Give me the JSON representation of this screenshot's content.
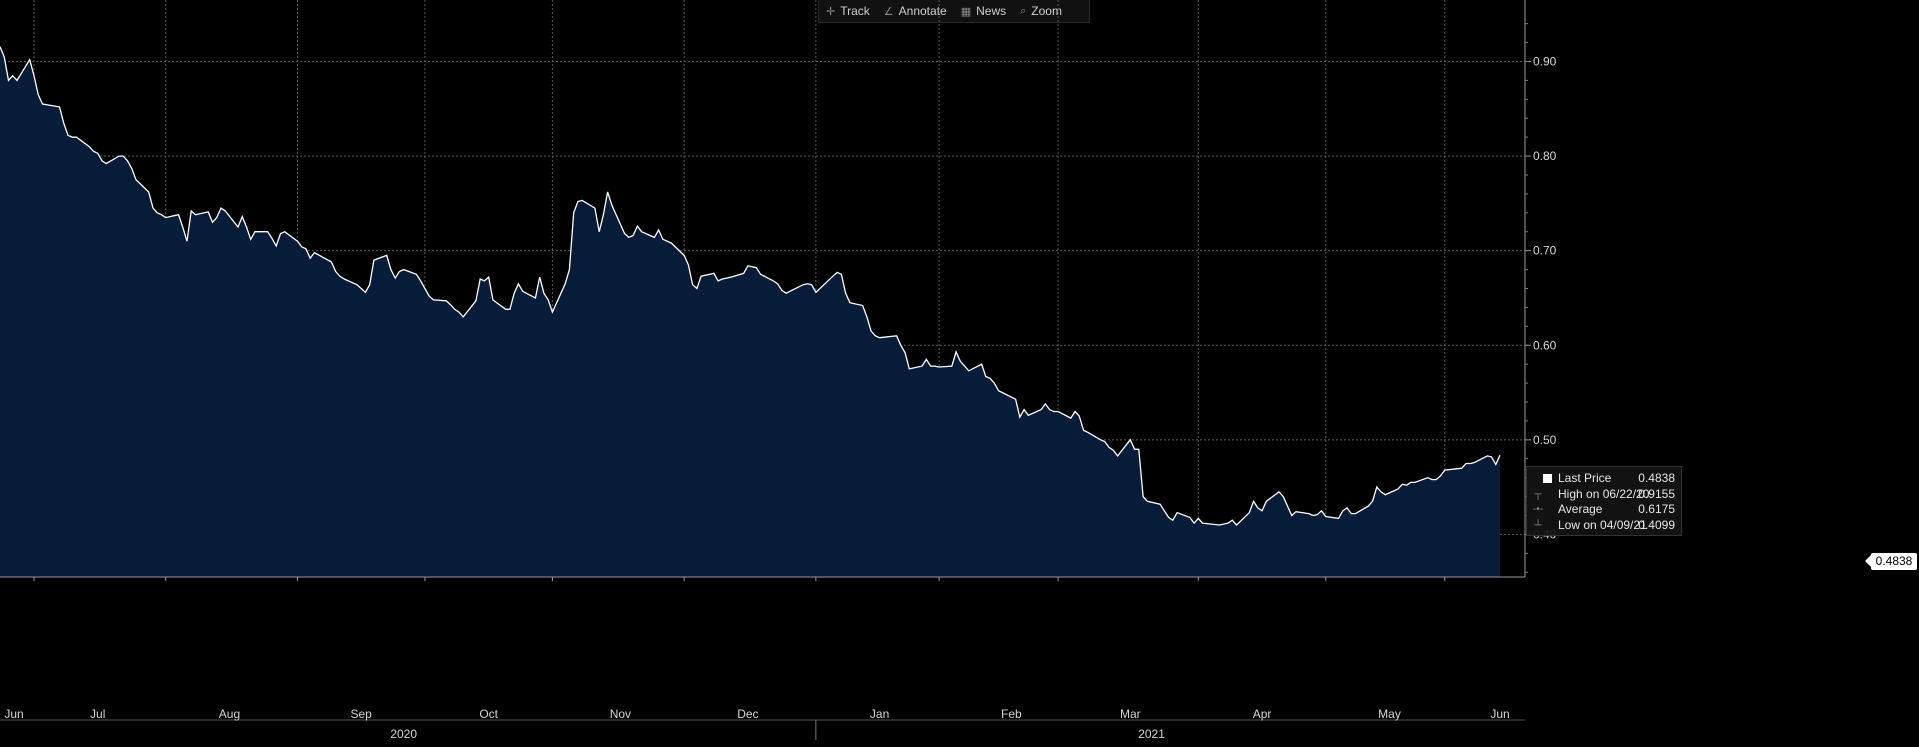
{
  "toolbar": {
    "items": [
      {
        "label": "Track",
        "icon": "crosshair-icon",
        "glyph": "✛"
      },
      {
        "label": "Annotate",
        "icon": "pencil-icon",
        "glyph": "∠"
      },
      {
        "label": "News",
        "icon": "news-icon",
        "glyph": "▦"
      },
      {
        "label": "Zoom",
        "icon": "magnifier-icon",
        "glyph": "⌕"
      }
    ]
  },
  "legend": {
    "rows": [
      {
        "label": "Last Price",
        "value": "0.4838",
        "marker": "swatch"
      },
      {
        "label": "High on 06/22/20",
        "value": "0.9155",
        "marker": "┬"
      },
      {
        "label": "Average",
        "value": "0.6175",
        "marker": "-•-"
      },
      {
        "label": "Low on 04/09/21",
        "value": "0.4099",
        "marker": "┴"
      }
    ]
  },
  "last_price_tag": "0.4838",
  "colors": {
    "background": "#000000",
    "line": "#ffffff",
    "fill": "#061c38",
    "grid": "#5a5a5a",
    "text": "#d6d6d6"
  },
  "chart_data": {
    "type": "area",
    "series": [
      {
        "name": "Last Price",
        "points": [
          [
            "2020-06-22",
            0.9155
          ],
          [
            "2020-06-23",
            0.905
          ],
          [
            "2020-06-24",
            0.88
          ],
          [
            "2020-06-25",
            0.885
          ],
          [
            "2020-06-26",
            0.88
          ],
          [
            "2020-06-29",
            0.902
          ],
          [
            "2020-06-30",
            0.885
          ],
          [
            "2020-07-01",
            0.865
          ],
          [
            "2020-07-02",
            0.855
          ],
          [
            "2020-07-06",
            0.852
          ],
          [
            "2020-07-07",
            0.835
          ],
          [
            "2020-07-08",
            0.822
          ],
          [
            "2020-07-09",
            0.82
          ],
          [
            "2020-07-10",
            0.82
          ],
          [
            "2020-07-13",
            0.81
          ],
          [
            "2020-07-14",
            0.805
          ],
          [
            "2020-07-15",
            0.803
          ],
          [
            "2020-07-16",
            0.795
          ],
          [
            "2020-07-17",
            0.792
          ],
          [
            "2020-07-20",
            0.8
          ],
          [
            "2020-07-21",
            0.8
          ],
          [
            "2020-07-22",
            0.795
          ],
          [
            "2020-07-23",
            0.787
          ],
          [
            "2020-07-24",
            0.775
          ],
          [
            "2020-07-27",
            0.762
          ],
          [
            "2020-07-28",
            0.745
          ],
          [
            "2020-07-29",
            0.74
          ],
          [
            "2020-07-30",
            0.738
          ],
          [
            "2020-07-31",
            0.735
          ],
          [
            "2020-08-03",
            0.738
          ],
          [
            "2020-08-04",
            0.725
          ],
          [
            "2020-08-05",
            0.71
          ],
          [
            "2020-08-06",
            0.742
          ],
          [
            "2020-08-07",
            0.738
          ],
          [
            "2020-08-10",
            0.741
          ],
          [
            "2020-08-11",
            0.73
          ],
          [
            "2020-08-12",
            0.735
          ],
          [
            "2020-08-13",
            0.745
          ],
          [
            "2020-08-14",
            0.742
          ],
          [
            "2020-08-17",
            0.725
          ],
          [
            "2020-08-18",
            0.736
          ],
          [
            "2020-08-19",
            0.725
          ],
          [
            "2020-08-20",
            0.712
          ],
          [
            "2020-08-21",
            0.72
          ],
          [
            "2020-08-24",
            0.72
          ],
          [
            "2020-08-25",
            0.713
          ],
          [
            "2020-08-26",
            0.705
          ],
          [
            "2020-08-27",
            0.718
          ],
          [
            "2020-08-28",
            0.72
          ],
          [
            "2020-08-31",
            0.71
          ],
          [
            "2020-09-01",
            0.704
          ],
          [
            "2020-09-02",
            0.702
          ],
          [
            "2020-09-03",
            0.692
          ],
          [
            "2020-09-04",
            0.698
          ],
          [
            "2020-09-08",
            0.688
          ],
          [
            "2020-09-09",
            0.678
          ],
          [
            "2020-09-10",
            0.673
          ],
          [
            "2020-09-11",
            0.67
          ],
          [
            "2020-09-14",
            0.664
          ],
          [
            "2020-09-15",
            0.66
          ],
          [
            "2020-09-16",
            0.656
          ],
          [
            "2020-09-17",
            0.664
          ],
          [
            "2020-09-18",
            0.69
          ],
          [
            "2020-09-21",
            0.695
          ],
          [
            "2020-09-22",
            0.68
          ],
          [
            "2020-09-23",
            0.671
          ],
          [
            "2020-09-24",
            0.678
          ],
          [
            "2020-09-25",
            0.68
          ],
          [
            "2020-09-28",
            0.675
          ],
          [
            "2020-09-29",
            0.668
          ],
          [
            "2020-09-30",
            0.66
          ],
          [
            "2020-10-01",
            0.652
          ],
          [
            "2020-10-02",
            0.648
          ],
          [
            "2020-10-05",
            0.647
          ],
          [
            "2020-10-06",
            0.643
          ],
          [
            "2020-10-07",
            0.638
          ],
          [
            "2020-10-08",
            0.635
          ],
          [
            "2020-10-09",
            0.63
          ],
          [
            "2020-10-12",
            0.647
          ],
          [
            "2020-10-13",
            0.67
          ],
          [
            "2020-10-14",
            0.668
          ],
          [
            "2020-10-15",
            0.672
          ],
          [
            "2020-10-16",
            0.648
          ],
          [
            "2020-10-19",
            0.638
          ],
          [
            "2020-10-20",
            0.638
          ],
          [
            "2020-10-21",
            0.655
          ],
          [
            "2020-10-22",
            0.665
          ],
          [
            "2020-10-23",
            0.657
          ],
          [
            "2020-10-26",
            0.65
          ],
          [
            "2020-10-27",
            0.672
          ],
          [
            "2020-10-28",
            0.655
          ],
          [
            "2020-10-29",
            0.648
          ],
          [
            "2020-10-30",
            0.635
          ],
          [
            "2020-11-02",
            0.665
          ],
          [
            "2020-11-03",
            0.68
          ],
          [
            "2020-11-04",
            0.74
          ],
          [
            "2020-11-05",
            0.752
          ],
          [
            "2020-11-06",
            0.753
          ],
          [
            "2020-11-09",
            0.745
          ],
          [
            "2020-11-10",
            0.72
          ],
          [
            "2020-11-11",
            0.738
          ],
          [
            "2020-11-12",
            0.762
          ],
          [
            "2020-11-13",
            0.748
          ],
          [
            "2020-11-16",
            0.718
          ],
          [
            "2020-11-17",
            0.714
          ],
          [
            "2020-11-18",
            0.716
          ],
          [
            "2020-11-19",
            0.726
          ],
          [
            "2020-11-20",
            0.72
          ],
          [
            "2020-11-23",
            0.714
          ],
          [
            "2020-11-24",
            0.722
          ],
          [
            "2020-11-25",
            0.712
          ],
          [
            "2020-11-27",
            0.708
          ],
          [
            "2020-11-30",
            0.695
          ],
          [
            "2020-12-01",
            0.685
          ],
          [
            "2020-12-02",
            0.664
          ],
          [
            "2020-12-03",
            0.66
          ],
          [
            "2020-12-04",
            0.673
          ],
          [
            "2020-12-07",
            0.676
          ],
          [
            "2020-12-08",
            0.668
          ],
          [
            "2020-12-09",
            0.67
          ],
          [
            "2020-12-10",
            0.671
          ],
          [
            "2020-12-11",
            0.672
          ],
          [
            "2020-12-14",
            0.676
          ],
          [
            "2020-12-15",
            0.684
          ],
          [
            "2020-12-16",
            0.683
          ],
          [
            "2020-12-17",
            0.682
          ],
          [
            "2020-12-18",
            0.675
          ],
          [
            "2020-12-21",
            0.668
          ],
          [
            "2020-12-22",
            0.665
          ],
          [
            "2020-12-23",
            0.658
          ],
          [
            "2020-12-24",
            0.655
          ],
          [
            "2020-12-28",
            0.664
          ],
          [
            "2020-12-29",
            0.665
          ],
          [
            "2020-12-30",
            0.664
          ],
          [
            "2020-12-31",
            0.656
          ],
          [
            "2021-01-04",
            0.673
          ],
          [
            "2021-01-05",
            0.677
          ],
          [
            "2021-01-06",
            0.675
          ],
          [
            "2021-01-07",
            0.655
          ],
          [
            "2021-01-08",
            0.645
          ],
          [
            "2021-01-11",
            0.642
          ],
          [
            "2021-01-12",
            0.63
          ],
          [
            "2021-01-13",
            0.615
          ],
          [
            "2021-01-14",
            0.61
          ],
          [
            "2021-01-15",
            0.608
          ],
          [
            "2021-01-19",
            0.61
          ],
          [
            "2021-01-20",
            0.6
          ],
          [
            "2021-01-21",
            0.592
          ],
          [
            "2021-01-22",
            0.575
          ],
          [
            "2021-01-25",
            0.578
          ],
          [
            "2021-01-26",
            0.585
          ],
          [
            "2021-01-27",
            0.578
          ],
          [
            "2021-01-28",
            0.578
          ],
          [
            "2021-01-29",
            0.577
          ],
          [
            "2021-02-01",
            0.578
          ],
          [
            "2021-02-02",
            0.593
          ],
          [
            "2021-02-03",
            0.583
          ],
          [
            "2021-02-04",
            0.578
          ],
          [
            "2021-02-05",
            0.573
          ],
          [
            "2021-02-08",
            0.58
          ],
          [
            "2021-02-09",
            0.567
          ],
          [
            "2021-02-10",
            0.565
          ],
          [
            "2021-02-11",
            0.56
          ],
          [
            "2021-02-12",
            0.552
          ],
          [
            "2021-02-16",
            0.543
          ],
          [
            "2021-02-17",
            0.524
          ],
          [
            "2021-02-18",
            0.532
          ],
          [
            "2021-02-19",
            0.526
          ],
          [
            "2021-02-22",
            0.532
          ],
          [
            "2021-02-23",
            0.538
          ],
          [
            "2021-02-24",
            0.532
          ],
          [
            "2021-02-25",
            0.53
          ],
          [
            "2021-02-26",
            0.53
          ],
          [
            "2021-03-01",
            0.523
          ],
          [
            "2021-03-02",
            0.53
          ],
          [
            "2021-03-03",
            0.525
          ],
          [
            "2021-03-04",
            0.51
          ],
          [
            "2021-03-05",
            0.508
          ],
          [
            "2021-03-08",
            0.5
          ],
          [
            "2021-03-09",
            0.498
          ],
          [
            "2021-03-10",
            0.492
          ],
          [
            "2021-03-11",
            0.489
          ],
          [
            "2021-03-12",
            0.483
          ],
          [
            "2021-03-15",
            0.5
          ],
          [
            "2021-03-16",
            0.49
          ],
          [
            "2021-03-17",
            0.49
          ],
          [
            "2021-03-18",
            0.44
          ],
          [
            "2021-03-19",
            0.435
          ],
          [
            "2021-03-22",
            0.432
          ],
          [
            "2021-03-23",
            0.425
          ],
          [
            "2021-03-24",
            0.418
          ],
          [
            "2021-03-25",
            0.415
          ],
          [
            "2021-03-26",
            0.423
          ],
          [
            "2021-03-29",
            0.418
          ],
          [
            "2021-03-30",
            0.412
          ],
          [
            "2021-03-31",
            0.417
          ],
          [
            "2021-04-01",
            0.412
          ],
          [
            "2021-04-05",
            0.41
          ],
          [
            "2021-04-07",
            0.412
          ],
          [
            "2021-04-08",
            0.415
          ],
          [
            "2021-04-09",
            0.4099
          ],
          [
            "2021-04-12",
            0.423
          ],
          [
            "2021-04-13",
            0.435
          ],
          [
            "2021-04-14",
            0.428
          ],
          [
            "2021-04-15",
            0.425
          ],
          [
            "2021-04-16",
            0.435
          ],
          [
            "2021-04-19",
            0.445
          ],
          [
            "2021-04-20",
            0.44
          ],
          [
            "2021-04-21",
            0.43
          ],
          [
            "2021-04-22",
            0.42
          ],
          [
            "2021-04-23",
            0.424
          ],
          [
            "2021-04-26",
            0.422
          ],
          [
            "2021-04-27",
            0.42
          ],
          [
            "2021-04-28",
            0.421
          ],
          [
            "2021-04-29",
            0.425
          ],
          [
            "2021-04-30",
            0.419
          ],
          [
            "2021-05-03",
            0.417
          ],
          [
            "2021-05-04",
            0.425
          ],
          [
            "2021-05-05",
            0.428
          ],
          [
            "2021-05-06",
            0.422
          ],
          [
            "2021-05-07",
            0.422
          ],
          [
            "2021-05-10",
            0.43
          ],
          [
            "2021-05-11",
            0.435
          ],
          [
            "2021-05-12",
            0.45
          ],
          [
            "2021-05-13",
            0.445
          ],
          [
            "2021-05-14",
            0.442
          ],
          [
            "2021-05-17",
            0.448
          ],
          [
            "2021-05-18",
            0.453
          ],
          [
            "2021-05-19",
            0.452
          ],
          [
            "2021-05-20",
            0.455
          ],
          [
            "2021-05-21",
            0.455
          ],
          [
            "2021-05-24",
            0.46
          ],
          [
            "2021-05-25",
            0.458
          ],
          [
            "2021-05-26",
            0.458
          ],
          [
            "2021-05-27",
            0.462
          ],
          [
            "2021-05-28",
            0.468
          ],
          [
            "2021-06-01",
            0.47
          ],
          [
            "2021-06-02",
            0.475
          ],
          [
            "2021-06-03",
            0.475
          ],
          [
            "2021-06-04",
            0.476
          ],
          [
            "2021-06-07",
            0.483
          ],
          [
            "2021-06-08",
            0.482
          ],
          [
            "2021-06-09",
            0.474
          ],
          [
            "2021-06-10",
            0.4838
          ]
        ]
      }
    ],
    "x_start": "2020-06-22",
    "x_end": "2021-06-10",
    "y_axis_side": "right",
    "ylim": [
      0.355,
      0.965
    ],
    "y_ticks": [
      0.4,
      0.5,
      0.6,
      0.7,
      0.8,
      0.9
    ],
    "y_tick_labels": [
      "0.40",
      "0.50",
      "0.60",
      "0.70",
      "0.80",
      "0.90"
    ],
    "months": [
      {
        "label": "Jun",
        "date": "2020-06-20"
      },
      {
        "label": "Jul",
        "date": "2020-07-15"
      },
      {
        "label": "Aug",
        "date": "2020-08-15"
      },
      {
        "label": "Sep",
        "date": "2020-09-15"
      },
      {
        "label": "Oct",
        "date": "2020-10-15"
      },
      {
        "label": "Nov",
        "date": "2020-11-15"
      },
      {
        "label": "Dec",
        "date": "2020-12-15"
      },
      {
        "label": "Jan",
        "date": "2021-01-15"
      },
      {
        "label": "Feb",
        "date": "2021-02-15"
      },
      {
        "label": "Mar",
        "date": "2021-03-15"
      },
      {
        "label": "Apr",
        "date": "2021-04-15"
      },
      {
        "label": "May",
        "date": "2021-05-15"
      },
      {
        "label": "Jun",
        "date": "2021-06-10"
      }
    ],
    "vgrid_dates": [
      "2020-06-30",
      "2020-07-31",
      "2020-08-31",
      "2020-09-30",
      "2020-10-30",
      "2020-11-30",
      "2020-12-31",
      "2021-01-29",
      "2021-02-26",
      "2021-03-31",
      "2021-04-30",
      "2021-05-28"
    ],
    "years": [
      {
        "label": "2020",
        "date": "2020-09-25"
      },
      {
        "label": "2021",
        "date": "2021-03-20"
      }
    ],
    "year_divider": "2020-12-31",
    "grid": true,
    "legend_position": "lower-right"
  }
}
